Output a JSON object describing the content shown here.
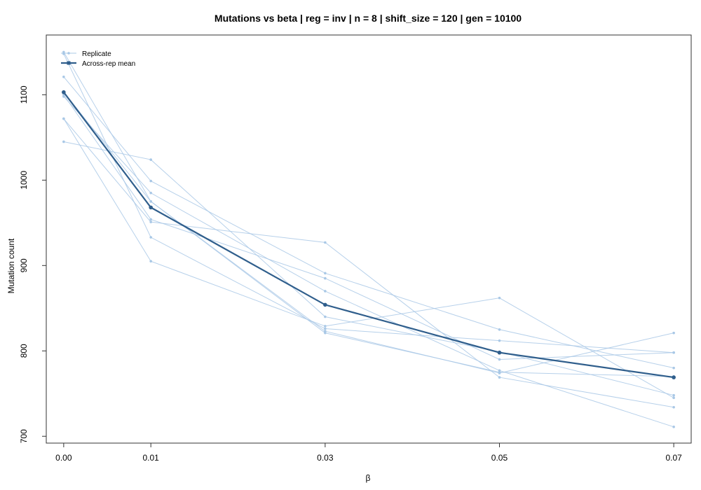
{
  "chart_data": {
    "type": "line",
    "title": "Mutations vs beta | reg = inv | n = 8 | shift_size = 120 | gen = 10100",
    "xlabel": "β",
    "ylabel": "Mutation count",
    "x": [
      0.0,
      0.01,
      0.03,
      0.05,
      0.07
    ],
    "x_tick_labels": [
      "0.00",
      "0.01",
      "0.03",
      "0.05",
      "0.07"
    ],
    "x_scale": "categorical-evenly-spaced-by-value",
    "xlim": [
      -0.002,
      0.072
    ],
    "ylim": [
      692,
      1170
    ],
    "y_ticks": [
      700,
      800,
      900,
      1000,
      1100
    ],
    "grid": false,
    "legend": {
      "placement": "top-left",
      "entries": [
        "Replicate",
        "Across-rep mean"
      ]
    },
    "colors": {
      "replicate": "#a9c8e6",
      "mean": "#2f5e8c"
    },
    "replicates": [
      {
        "values": [
          1150,
          975,
          821,
          775,
          770
        ]
      },
      {
        "values": [
          1148,
          933,
          826,
          812,
          798
        ]
      },
      {
        "values": [
          1121,
          999,
          891,
          825,
          780
        ]
      },
      {
        "values": [
          1100,
          954,
          885,
          790,
          798
        ]
      },
      {
        "values": [
          1098,
          985,
          870,
          777,
          711
        ]
      },
      {
        "values": [
          1072,
          951,
          927,
          769,
          734
        ]
      },
      {
        "values": [
          1072,
          905,
          829,
          862,
          745
        ]
      },
      {
        "values": [
          1045,
          1024,
          840,
          799,
          748
        ]
      },
      {
        "values": [
          1103,
          975,
          823,
          774,
          821
        ]
      }
    ],
    "series": [
      {
        "name": "Across-rep mean",
        "values": [
          1103,
          968,
          854,
          798,
          769
        ]
      }
    ]
  }
}
